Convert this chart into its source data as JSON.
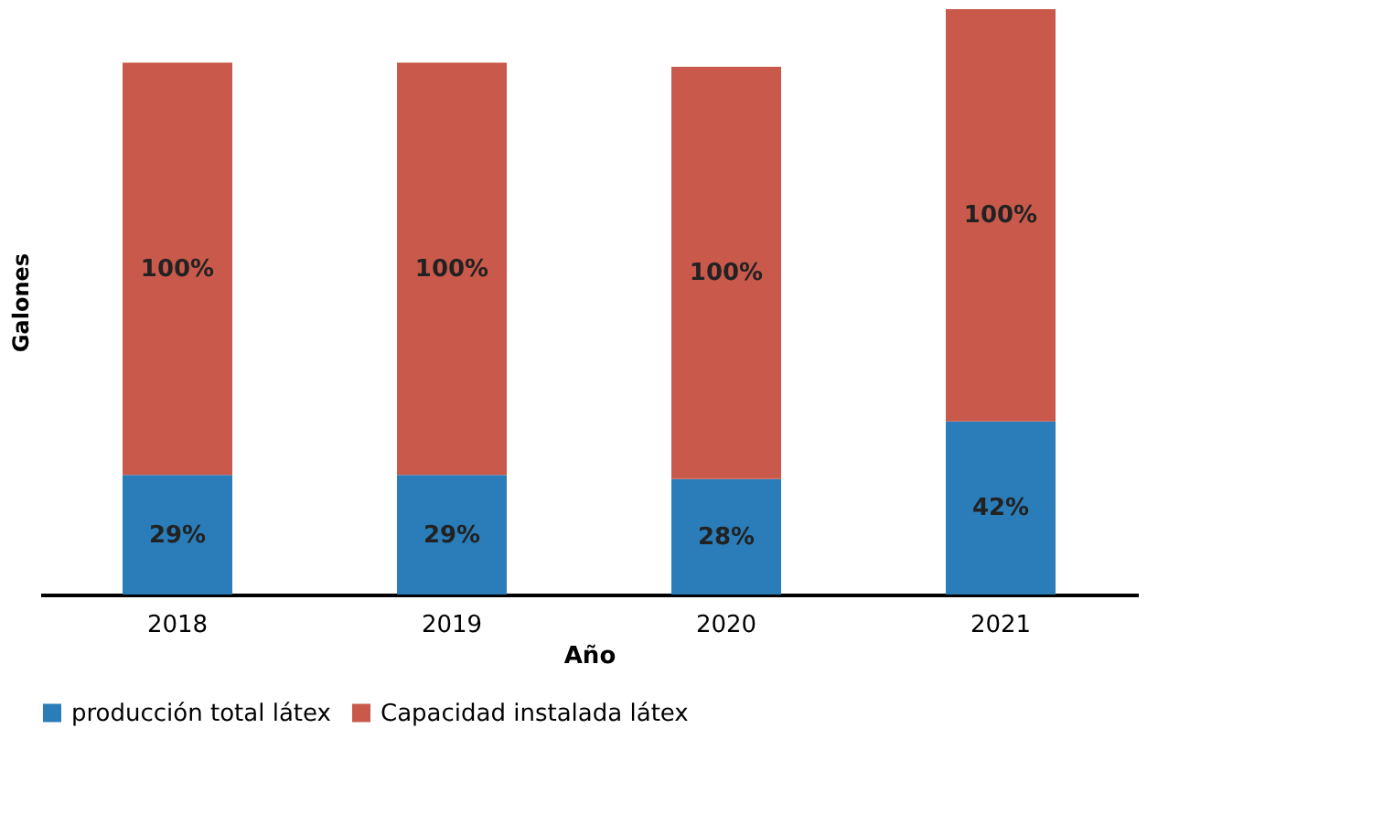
{
  "chart_data": {
    "type": "bar",
    "stacked": true,
    "xlabel": "Año",
    "ylabel": "Galones",
    "categories": [
      "2018",
      "2019",
      "2020",
      "2021"
    ],
    "series": [
      {
        "name": "producción total látex",
        "color": "#2a7db8",
        "values": [
          29,
          29,
          28,
          42
        ],
        "value_labels": [
          "29%",
          "29%",
          "28%",
          "42%"
        ]
      },
      {
        "name": "Capacidad instalada látex",
        "color": "#c95a4b",
        "values": [
          100,
          100,
          100,
          100
        ],
        "value_labels": [
          "100%",
          "100%",
          "100%",
          "100%"
        ]
      }
    ],
    "tick_labels": "x",
    "legend": "bottom"
  }
}
